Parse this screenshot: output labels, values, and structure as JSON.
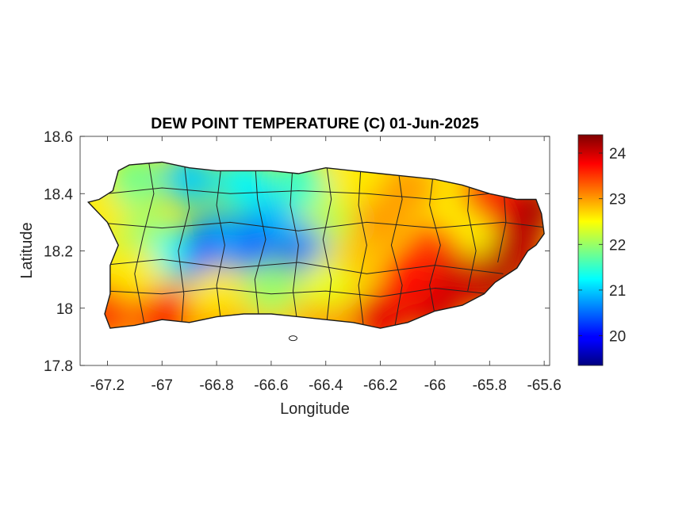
{
  "chart_data": {
    "type": "heatmap",
    "title": "DEW POINT TEMPERATURE (C) 01-Jun-2025",
    "xlabel": "Longitude",
    "ylabel": "Latitude",
    "xlim": [
      -67.3,
      -65.58
    ],
    "ylim": [
      17.8,
      18.6
    ],
    "x_ticks": [
      {
        "value": -67.2,
        "label": "-67.2"
      },
      {
        "value": -67.0,
        "label": "-67"
      },
      {
        "value": -66.8,
        "label": "-66.8"
      },
      {
        "value": -66.6,
        "label": "-66.6"
      },
      {
        "value": -66.4,
        "label": "-66.4"
      },
      {
        "value": -66.2,
        "label": "-66.2"
      },
      {
        "value": -66.0,
        "label": "-66"
      },
      {
        "value": -65.8,
        "label": "-65.8"
      },
      {
        "value": -65.6,
        "label": "-65.6"
      }
    ],
    "y_ticks": [
      {
        "value": 17.8,
        "label": "17.8"
      },
      {
        "value": 18.0,
        "label": "18"
      },
      {
        "value": 18.2,
        "label": "18.2"
      },
      {
        "value": 18.4,
        "label": "18.4"
      },
      {
        "value": 18.6,
        "label": "18.6"
      }
    ],
    "colorbar": {
      "colormap": "jet",
      "range": [
        19.35,
        24.4
      ],
      "ticks": [
        {
          "value": 20,
          "label": "20"
        },
        {
          "value": 21,
          "label": "21"
        },
        {
          "value": 22,
          "label": "22"
        },
        {
          "value": 23,
          "label": "23"
        },
        {
          "value": 24,
          "label": "24"
        }
      ]
    },
    "grid": false,
    "island_outline": [
      [
        -67.27,
        18.37
      ],
      [
        -67.23,
        18.38
      ],
      [
        -67.18,
        18.41
      ],
      [
        -67.16,
        18.48
      ],
      [
        -67.12,
        18.5
      ],
      [
        -67.0,
        18.51
      ],
      [
        -66.9,
        18.49
      ],
      [
        -66.8,
        18.48
      ],
      [
        -66.7,
        18.48
      ],
      [
        -66.6,
        18.48
      ],
      [
        -66.5,
        18.47
      ],
      [
        -66.4,
        18.49
      ],
      [
        -66.3,
        18.48
      ],
      [
        -66.2,
        18.47
      ],
      [
        -66.1,
        18.46
      ],
      [
        -66.0,
        18.45
      ],
      [
        -65.9,
        18.43
      ],
      [
        -65.8,
        18.4
      ],
      [
        -65.7,
        18.38
      ],
      [
        -65.63,
        18.38
      ],
      [
        -65.61,
        18.33
      ],
      [
        -65.6,
        18.26
      ],
      [
        -65.63,
        18.22
      ],
      [
        -65.66,
        18.2
      ],
      [
        -65.7,
        18.14
      ],
      [
        -65.78,
        18.09
      ],
      [
        -65.82,
        18.05
      ],
      [
        -65.9,
        18.01
      ],
      [
        -66.0,
        17.99
      ],
      [
        -66.1,
        17.95
      ],
      [
        -66.2,
        17.93
      ],
      [
        -66.3,
        17.95
      ],
      [
        -66.4,
        17.96
      ],
      [
        -66.5,
        17.97
      ],
      [
        -66.6,
        17.98
      ],
      [
        -66.7,
        17.98
      ],
      [
        -66.8,
        17.97
      ],
      [
        -66.9,
        17.95
      ],
      [
        -67.0,
        17.96
      ],
      [
        -67.1,
        17.94
      ],
      [
        -67.19,
        17.93
      ],
      [
        -67.21,
        17.98
      ],
      [
        -67.19,
        18.05
      ],
      [
        -67.19,
        18.15
      ],
      [
        -67.16,
        18.22
      ],
      [
        -67.2,
        18.3
      ],
      [
        -67.27,
        18.37
      ]
    ],
    "dew_point_samples": [
      {
        "lon": -67.2,
        "lat": 18.0,
        "value": 23.8
      },
      {
        "lon": -67.1,
        "lat": 18.05,
        "value": 23.5
      },
      {
        "lon": -67.0,
        "lat": 17.98,
        "value": 23.8
      },
      {
        "lon": -66.8,
        "lat": 17.99,
        "value": 23.4
      },
      {
        "lon": -66.6,
        "lat": 18.0,
        "value": 22.8
      },
      {
        "lon": -66.4,
        "lat": 17.99,
        "value": 23.2
      },
      {
        "lon": -66.2,
        "lat": 17.96,
        "value": 23.9
      },
      {
        "lon": -66.0,
        "lat": 18.0,
        "value": 24.0
      },
      {
        "lon": -65.8,
        "lat": 18.1,
        "value": 24.2
      },
      {
        "lon": -65.7,
        "lat": 18.2,
        "value": 24.1
      },
      {
        "lon": -65.65,
        "lat": 18.35,
        "value": 24.2
      },
      {
        "lon": -65.8,
        "lat": 18.38,
        "value": 23.8
      },
      {
        "lon": -65.9,
        "lat": 18.25,
        "value": 22.5
      },
      {
        "lon": -66.0,
        "lat": 18.2,
        "value": 23.5
      },
      {
        "lon": -66.1,
        "lat": 18.42,
        "value": 23.0
      },
      {
        "lon": -66.3,
        "lat": 18.45,
        "value": 22.6
      },
      {
        "lon": -66.4,
        "lat": 18.3,
        "value": 22.2
      },
      {
        "lon": -66.3,
        "lat": 18.15,
        "value": 22.8
      },
      {
        "lon": -66.5,
        "lat": 18.2,
        "value": 20.6
      },
      {
        "lon": -66.6,
        "lat": 18.17,
        "value": 19.7
      },
      {
        "lon": -66.6,
        "lat": 18.3,
        "value": 20.9
      },
      {
        "lon": -66.7,
        "lat": 18.22,
        "value": 20.4
      },
      {
        "lon": -66.8,
        "lat": 18.25,
        "value": 20.8
      },
      {
        "lon": -66.9,
        "lat": 18.18,
        "value": 20.0
      },
      {
        "lon": -67.0,
        "lat": 18.2,
        "value": 21.3
      },
      {
        "lon": -67.1,
        "lat": 18.28,
        "value": 22.0
      },
      {
        "lon": -67.2,
        "lat": 18.35,
        "value": 22.6
      },
      {
        "lon": -67.1,
        "lat": 18.45,
        "value": 21.8
      },
      {
        "lon": -66.9,
        "lat": 18.45,
        "value": 21.0
      },
      {
        "lon": -66.7,
        "lat": 18.44,
        "value": 21.2
      },
      {
        "lon": -66.5,
        "lat": 18.44,
        "value": 21.5
      },
      {
        "lon": -66.8,
        "lat": 18.05,
        "value": 22.6
      },
      {
        "lon": -66.6,
        "lat": 18.07,
        "value": 22.0
      },
      {
        "lon": -66.4,
        "lat": 18.08,
        "value": 22.4
      },
      {
        "lon": -67.1,
        "lat": 18.12,
        "value": 22.6
      },
      {
        "lon": -66.2,
        "lat": 18.3,
        "value": 23.0
      },
      {
        "lon": -66.1,
        "lat": 18.1,
        "value": 23.7
      },
      {
        "lon": -65.9,
        "lat": 18.1,
        "value": 24.0
      }
    ]
  }
}
